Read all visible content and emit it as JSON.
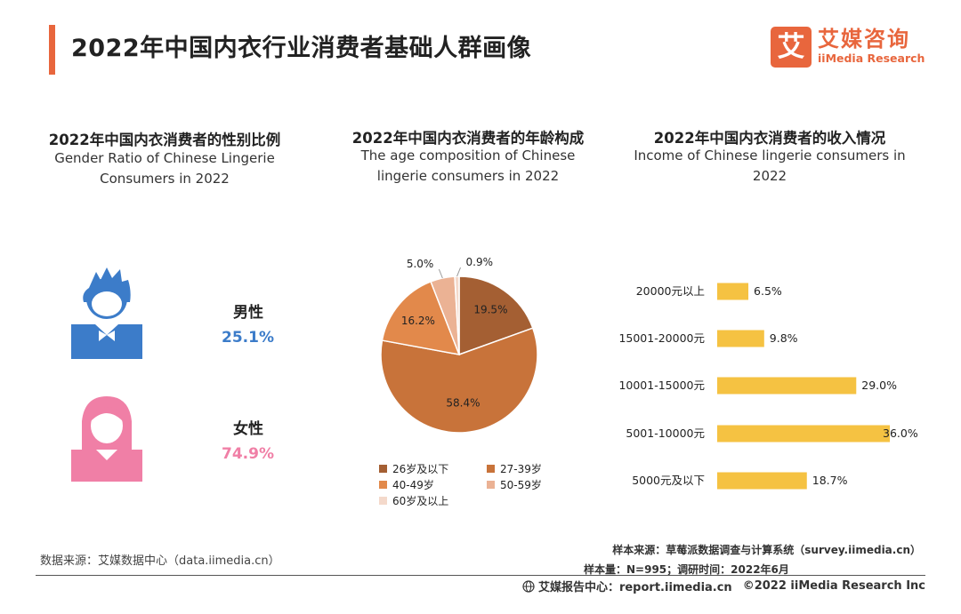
{
  "header": {
    "title": "2022年中国内衣行业消费者基础人群画像",
    "logo_mark": "艾",
    "logo_cn": "艾媒咨询",
    "logo_en": "iiMedia Research"
  },
  "gender_section": {
    "title_cn": "2022年中国内衣消费者的性别比例",
    "title_en": "Gender Ratio of Chinese Lingerie Consumers in 2022",
    "male_label": "男性",
    "male_value": "25.1%",
    "female_label": "女性",
    "female_value": "74.9%",
    "male_color": "#3c7cc9",
    "female_color": "#f07fa6"
  },
  "age_section": {
    "title_cn": "2022年中国内衣消费者的年龄构成",
    "title_en": "The age composition of Chinese lingerie consumers in 2022"
  },
  "income_section": {
    "title_cn": "2022年中国内衣消费者的收入情况",
    "title_en": "Income of Chinese lingerie consumers in 2022"
  },
  "chart_data": [
    {
      "type": "pie",
      "title": "2022年中国内衣消费者的性别比例",
      "categories": [
        "男性",
        "女性"
      ],
      "values": [
        25.1,
        74.9
      ],
      "colors": [
        "#3c7cc9",
        "#f07fa6"
      ]
    },
    {
      "type": "pie",
      "title": "2022年中国内衣消费者的年龄构成",
      "categories": [
        "26岁及以下",
        "27-39岁",
        "40-49岁",
        "50-59岁",
        "60岁及以上"
      ],
      "values": [
        19.5,
        58.4,
        16.2,
        5.0,
        0.9
      ],
      "labels": [
        "19.5%",
        "58.4%",
        "16.2%",
        "5.0%",
        "0.9%"
      ],
      "colors": [
        "#a45f33",
        "#c8733a",
        "#e2894b",
        "#ebb294",
        "#f4d9cb"
      ],
      "legend": "bottom"
    },
    {
      "type": "bar",
      "orientation": "horizontal",
      "title": "2022年中国内衣消费者的收入情况",
      "categories": [
        "20000元以上",
        "15001-20000元",
        "10001-15000元",
        "5001-10000元",
        "5000元及以下"
      ],
      "values": [
        6.5,
        9.8,
        29.0,
        36.0,
        18.7
      ],
      "labels": [
        "6.5%",
        "9.8%",
        "29.0%",
        "36.0%",
        "18.7%"
      ],
      "color": "#f5c242",
      "xlim": [
        0,
        36
      ]
    }
  ],
  "footer": {
    "source": "数据来源：艾媒数据中心（data.iimedia.cn）",
    "sample_source": "样本来源：草莓派数据调查与计算系统（survey.iimedia.cn）",
    "sample_size": "样本量：N=995；调研时间：2022年6月",
    "report_center": "艾媒报告中心：report.iimedia.cn",
    "copyright": "©2022  iiMedia Research  Inc"
  }
}
